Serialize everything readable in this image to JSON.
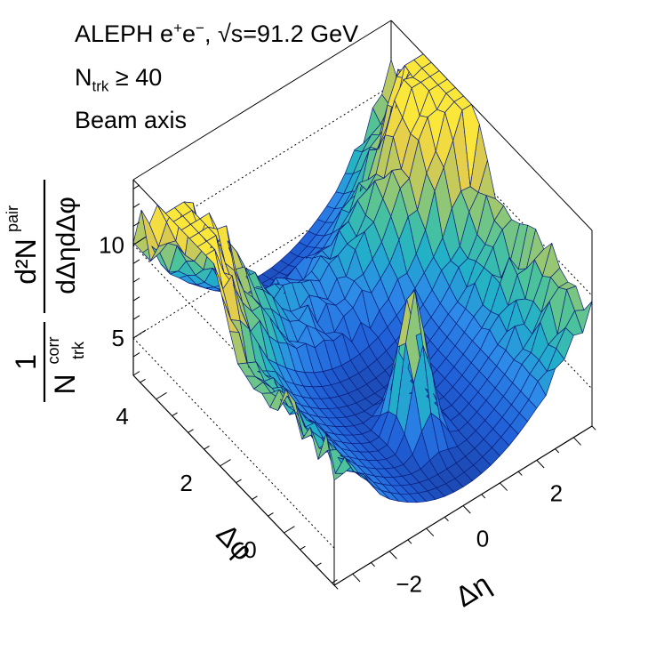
{
  "chart_data": {
    "type": "surface3d",
    "annotations": {
      "experiment": "ALEPH e",
      "beams_sup": "+",
      "beams_mid": "e",
      "beams_sup2": "−",
      "energy": ",  √s=91.2 GeV",
      "ntrk_base": "N",
      "ntrk_sub": "trk",
      "ntrk_cut": " ≥ 40",
      "frame": "Beam axis"
    },
    "xlabel": "Δη",
    "ylabel": "Δφ",
    "zlabel": {
      "one": "1",
      "denom_base": "N",
      "denom_sup": "corr",
      "denom_sub": "trk",
      "num": "d²N",
      "num_sup": "pair",
      "num_den": "dΔηdΔφ"
    },
    "xlim": [
      -3.5,
      3.5
    ],
    "ylim": [
      -1.5708,
      4.7124
    ],
    "zlim": [
      3,
      13.5
    ],
    "x_ticks": [
      {
        "value": -2,
        "label": "−2"
      },
      {
        "value": 0,
        "label": "0"
      },
      {
        "value": 2,
        "label": "2"
      }
    ],
    "y_ticks": [
      {
        "value": 0,
        "label": "0"
      },
      {
        "value": 2,
        "label": "2"
      },
      {
        "value": 4,
        "label": "4"
      }
    ],
    "z_ticks": [
      {
        "value": 5,
        "label": "5"
      },
      {
        "value": 10,
        "label": "10"
      }
    ],
    "surface_model": {
      "nx": 28,
      "ny": 25,
      "base_at_center": 4.0,
      "eta_growth": 0.45,
      "near_side_peak": 8.0,
      "near_side_width_eta": 0.28,
      "near_side_width_phi": 0.35,
      "away_side_amplitude": 3.5,
      "away_side_width_phi": 0.7,
      "edge_fluctuation": 2.5
    },
    "colormap": [
      "#1a3d9e",
      "#2060d8",
      "#2d8ae8",
      "#21b0c8",
      "#4cc39a",
      "#a6c86a",
      "#e3cc4c",
      "#fbe63a"
    ]
  }
}
